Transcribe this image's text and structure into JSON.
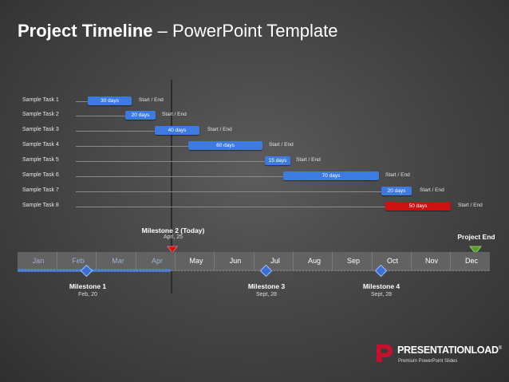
{
  "slide": {
    "title_bold": "Project Timeline",
    "title_rest": " – PowerPoint Template"
  },
  "colors": {
    "bar_blue": "#3d7be0",
    "bar_red": "#cc1111",
    "milestone_blue": "#3b6fd0",
    "today_red": "#cc1111",
    "end_green": "#55a02a"
  },
  "tasks": [
    {
      "label": "Sample Task 1",
      "duration": "30 days",
      "status": "Start / End",
      "color": "blue"
    },
    {
      "label": "Sample Task 2",
      "duration": "20 days",
      "status": "Start / End",
      "color": "blue"
    },
    {
      "label": "Sample Task 3",
      "duration": "40 days",
      "status": "Start / End",
      "color": "blue"
    },
    {
      "label": "Sample Task 4",
      "duration": "60 days",
      "status": "Start / End",
      "color": "blue"
    },
    {
      "label": "Sample Task 5",
      "duration": "15 days",
      "status": "Start / End",
      "color": "blue"
    },
    {
      "label": "Sample Task 6",
      "duration": "70 days",
      "status": "Start / End",
      "color": "blue"
    },
    {
      "label": "Sample Task 7",
      "duration": "20 days",
      "status": "Start / End",
      "color": "blue"
    },
    {
      "label": "Sample Task 8",
      "duration": "50 days",
      "status": "Start / End",
      "color": "red"
    }
  ],
  "months": [
    "Jan",
    "Feb",
    "Mar",
    "Apr",
    "May",
    "Jun",
    "Jul",
    "Aug",
    "Sep",
    "Oct",
    "Nov",
    "Dec"
  ],
  "milestones": {
    "today": {
      "name": "Milestone 2 (Today)",
      "date": "Aprl, 25"
    },
    "m1": {
      "name": "Milestone 1",
      "date": "Feb, 20"
    },
    "m3": {
      "name": "Milestone 3",
      "date": "Sept, 28"
    },
    "m4": {
      "name": "Milestone 4",
      "date": "Sept, 28"
    },
    "end": {
      "name": "Project End"
    }
  },
  "logo": {
    "name": "PRESENTATIONLOAD",
    "reg": "®",
    "tagline": "Premium PowerPoint Slides"
  }
}
